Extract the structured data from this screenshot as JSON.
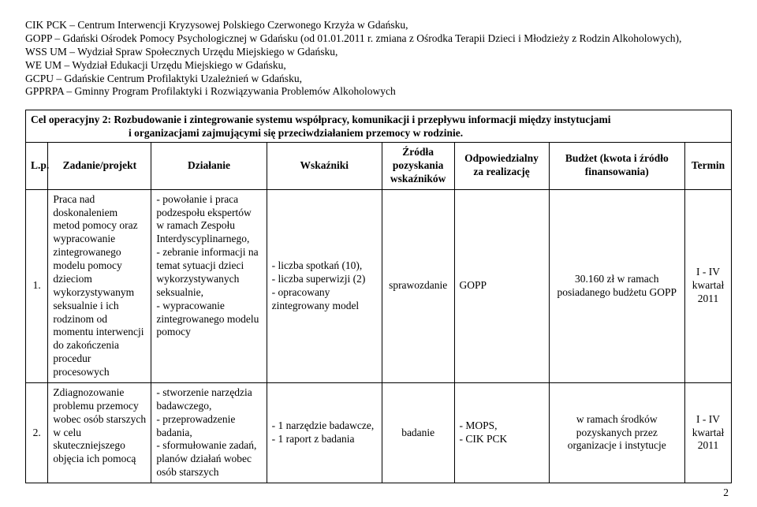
{
  "abbreviations": [
    "CIK PCK – Centrum Interwencji Kryzysowej Polskiego Czerwonego Krzyża w Gdańsku,",
    "GOPP – Gdański Ośrodek Pomocy Psychologicznej w Gdańsku (od 01.01.2011 r. zmiana z Ośrodka Terapii Dzieci i Młodzieży z Rodzin Alkoholowych),",
    "WSS UM – Wydział Spraw Społecznych Urzędu Miejskiego w Gdańsku,",
    "WE UM – Wydział Edukacji Urzędu Miejskiego w Gdańsku,",
    "GCPU – Gdańskie Centrum Profilaktyki Uzależnień w Gdańsku,",
    "GPPRPA – Gminny Program Profilaktyki i Rozwiązywania Problemów Alkoholowych"
  ],
  "cel_title_line1": "Cel operacyjny 2: Rozbudowanie i zintegrowanie systemu współpracy, komunikacji i przepływu informacji między instytucjami",
  "cel_title_line2": "i organizacjami zajmującymi się przeciwdziałaniem przemocy w rodzinie.",
  "headers": {
    "lp": "L.p.",
    "zadanie": "Zadanie/projekt",
    "dzialanie": "Działanie",
    "wskazniki": "Wskaźniki",
    "zrodla": "Źródła pozyskania wskaźników",
    "odpowiedzialny": "Odpowiedzialny za realizację",
    "budzet": "Budżet (kwota i źródło finansowania)",
    "termin": "Termin"
  },
  "rows": [
    {
      "lp": "1.",
      "zadanie": "Praca nad doskonaleniem metod pomocy oraz wypracowanie zintegrowanego modelu pomocy dzieciom wykorzystywanym seksualnie i ich rodzinom od momentu interwencji do zakończenia procedur procesowych",
      "dzialanie": "- powołanie i praca podzespołu ekspertów w ramach Zespołu Interdyscyplinarnego,\n- zebranie informacji na temat sytuacji dzieci wykorzystywanych seksualnie,\n- wypracowanie zintegrowanego modelu pomocy",
      "wskazniki": "- liczba spotkań (10),\n- liczba superwizji (2)\n- opracowany zintegrowany model",
      "zrodla": "sprawozdanie",
      "odpowiedzialny": "GOPP",
      "budzet": "30.160 zł w ramach posiadanego budżetu GOPP",
      "termin": "I - IV kwartał 2011"
    },
    {
      "lp": "2.",
      "zadanie": "Zdiagnozowanie problemu przemocy wobec osób starszych w celu skuteczniejszego objęcia ich pomocą",
      "dzialanie": "- stworzenie narzędzia badawczego,\n- przeprowadzenie badania,\n- sformułowanie zadań, planów działań wobec osób starszych",
      "wskazniki": "- 1 narzędzie badawcze,\n- 1 raport z badania",
      "zrodla": "badanie",
      "odpowiedzialny": "- MOPS,\n- CIK PCK",
      "budzet": "w ramach środków pozyskanych przez organizacje i instytucje",
      "termin": "I - IV kwartał 2011"
    }
  ],
  "page_number": "2"
}
